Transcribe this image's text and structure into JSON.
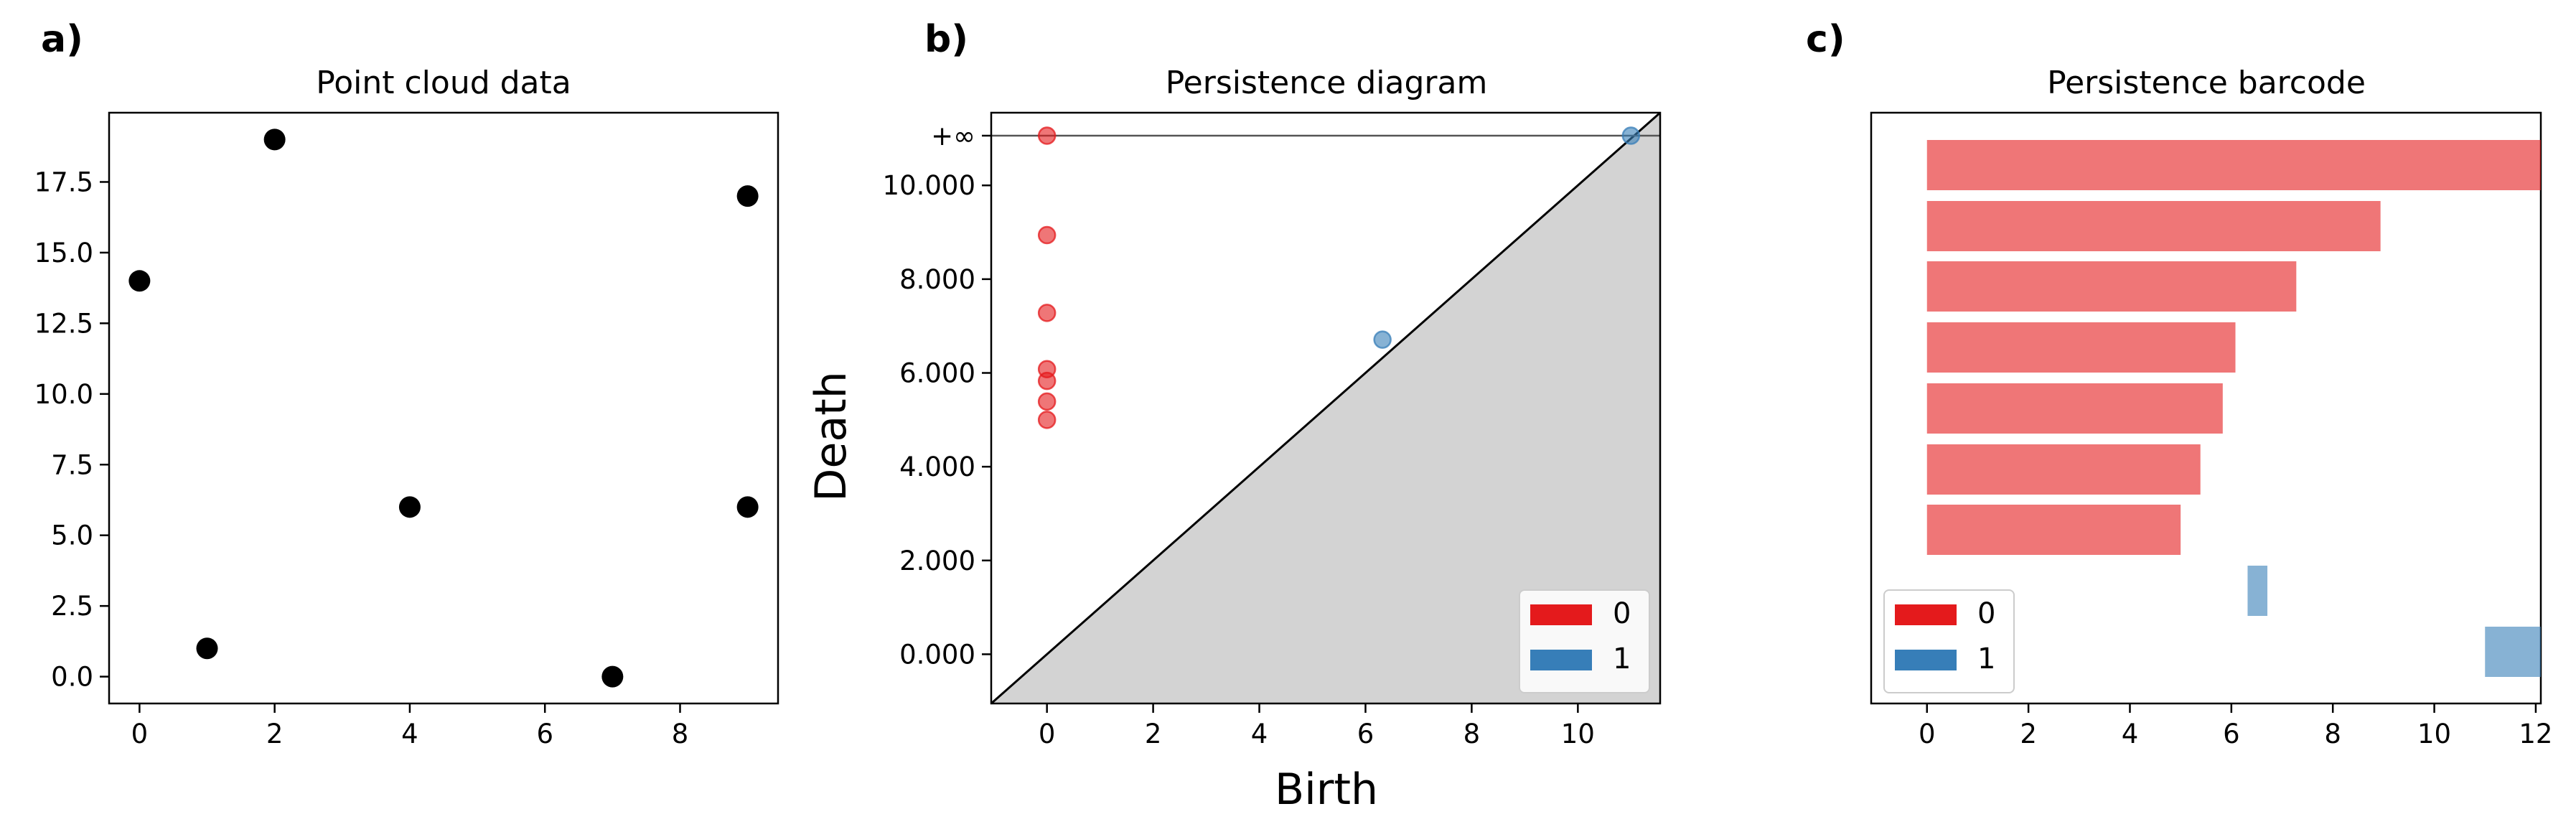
{
  "figure": {
    "panels": [
      {
        "label": "a)",
        "title": "Point cloud data"
      },
      {
        "label": "b)",
        "title": "Persistence diagram"
      },
      {
        "label": "c)",
        "title": "Persistence barcode"
      }
    ]
  },
  "chart_data": [
    {
      "type": "scatter",
      "title": "Point cloud data",
      "xlabel": "",
      "ylabel": "",
      "points": [
        [
          0,
          14
        ],
        [
          1,
          1
        ],
        [
          2,
          19
        ],
        [
          4,
          6
        ],
        [
          7,
          0
        ],
        [
          9,
          17
        ],
        [
          9,
          6
        ]
      ],
      "xticks": [
        "0",
        "2",
        "4",
        "6",
        "8"
      ],
      "yticks": [
        "0.0",
        "2.5",
        "5.0",
        "7.5",
        "10.0",
        "12.5",
        "15.0",
        "17.5"
      ],
      "xlim": [
        -0.45,
        9.45
      ],
      "ylim": [
        -0.95,
        19.95
      ],
      "grid": false,
      "color": "#000000"
    },
    {
      "type": "scatter",
      "title": "Persistence diagram",
      "xlabel": "Birth",
      "ylabel": "Death",
      "series": [
        {
          "name": "0",
          "color": "#e41a1c",
          "points": [
            [
              0,
              5.0
            ],
            [
              0,
              5.39
            ],
            [
              0,
              5.83
            ],
            [
              0,
              6.08
            ],
            [
              0,
              7.28
            ],
            [
              0,
              8.94
            ],
            [
              0,
              "+∞"
            ]
          ]
        },
        {
          "name": "1",
          "color": "#377eb8",
          "points": [
            [
              6.32,
              6.71
            ],
            [
              11.0,
              "+∞"
            ]
          ]
        }
      ],
      "infinity_label": "+∞",
      "xticks": [
        "0",
        "2",
        "4",
        "6",
        "8",
        "10"
      ],
      "yticks": [
        "0.000",
        "2.000",
        "4.000",
        "6.000",
        "8.000",
        "10.000"
      ],
      "xlim": [
        -1.05,
        11.55
      ],
      "ylim": [
        -1.05,
        11.55
      ],
      "diagonal": true,
      "legend": "bottom-right",
      "grid": false
    },
    {
      "type": "bar",
      "orientation": "horizontal",
      "title": "Persistence barcode",
      "xlabel": "",
      "ylabel": "",
      "series": [
        {
          "name": "0",
          "color": "#e41a1c",
          "bars": [
            [
              0,
              "+∞"
            ],
            [
              0,
              8.94
            ],
            [
              0,
              7.28
            ],
            [
              0,
              6.08
            ],
            [
              0,
              5.83
            ],
            [
              0,
              5.39
            ],
            [
              0,
              5.0
            ]
          ]
        },
        {
          "name": "1",
          "color": "#377eb8",
          "bars": [
            [
              6.32,
              6.71
            ],
            [
              11.0,
              "+∞"
            ]
          ]
        }
      ],
      "xticks": [
        "0",
        "2",
        "4",
        "6",
        "8",
        "10",
        "12"
      ],
      "xlim": [
        -1.1,
        12.1
      ],
      "legend": "bottom-left",
      "grid": false
    }
  ]
}
